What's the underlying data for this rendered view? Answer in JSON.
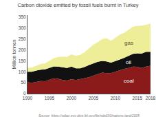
{
  "chart_data": {
    "type": "area",
    "stacked": true,
    "title": "Carbon dioxide emitted by fossil fuels burnt in Turkey",
    "y_label": "Million tonnes",
    "annotations": [
      "Source: https://cdiac.ess-dive.lbl.gov/ftp/ndp030/nations.land/2005"
    ],
    "x": [
      1990,
      1991,
      1992,
      1993,
      1994,
      1995,
      1996,
      1997,
      1998,
      1999,
      2000,
      2001,
      2002,
      2003,
      2004,
      2005,
      2006,
      2007,
      2008,
      2009,
      2010,
      2011,
      2012,
      2013,
      2014,
      2015,
      2016,
      2017,
      2018
    ],
    "series": [
      {
        "name": "coal",
        "color": "#8B1A1A",
        "values": [
          52,
          50,
          54,
          58,
          57,
          63,
          70,
          68,
          62,
          60,
          66,
          62,
          66,
          70,
          75,
          82,
          90,
          96,
          94,
          94,
          100,
          108,
          114,
          118,
          124,
          123,
          118,
          124,
          128
        ]
      },
      {
        "name": "oil",
        "color": "#111111",
        "values": [
          48,
          50,
          52,
          52,
          54,
          55,
          55,
          56,
          60,
          58,
          58,
          54,
          50,
          52,
          56,
          56,
          56,
          54,
          54,
          48,
          48,
          48,
          50,
          54,
          58,
          62,
          66,
          68,
          64
        ]
      },
      {
        "name": "gas",
        "color": "#eeee99",
        "values": [
          18,
          20,
          22,
          26,
          28,
          32,
          38,
          44,
          48,
          50,
          56,
          58,
          62,
          68,
          76,
          86,
          90,
          100,
          106,
          100,
          108,
          115,
          115,
          122,
          125,
          126,
          128,
          124,
          130
        ]
      }
    ],
    "xlim": [
      1990,
      2018
    ],
    "xticks": [
      1990,
      1995,
      2000,
      2005,
      2010,
      2015,
      2018
    ],
    "ylim": [
      0,
      360
    ],
    "yticks": [
      0,
      50,
      100,
      150,
      200,
      250,
      300,
      350
    ],
    "grid": false
  }
}
